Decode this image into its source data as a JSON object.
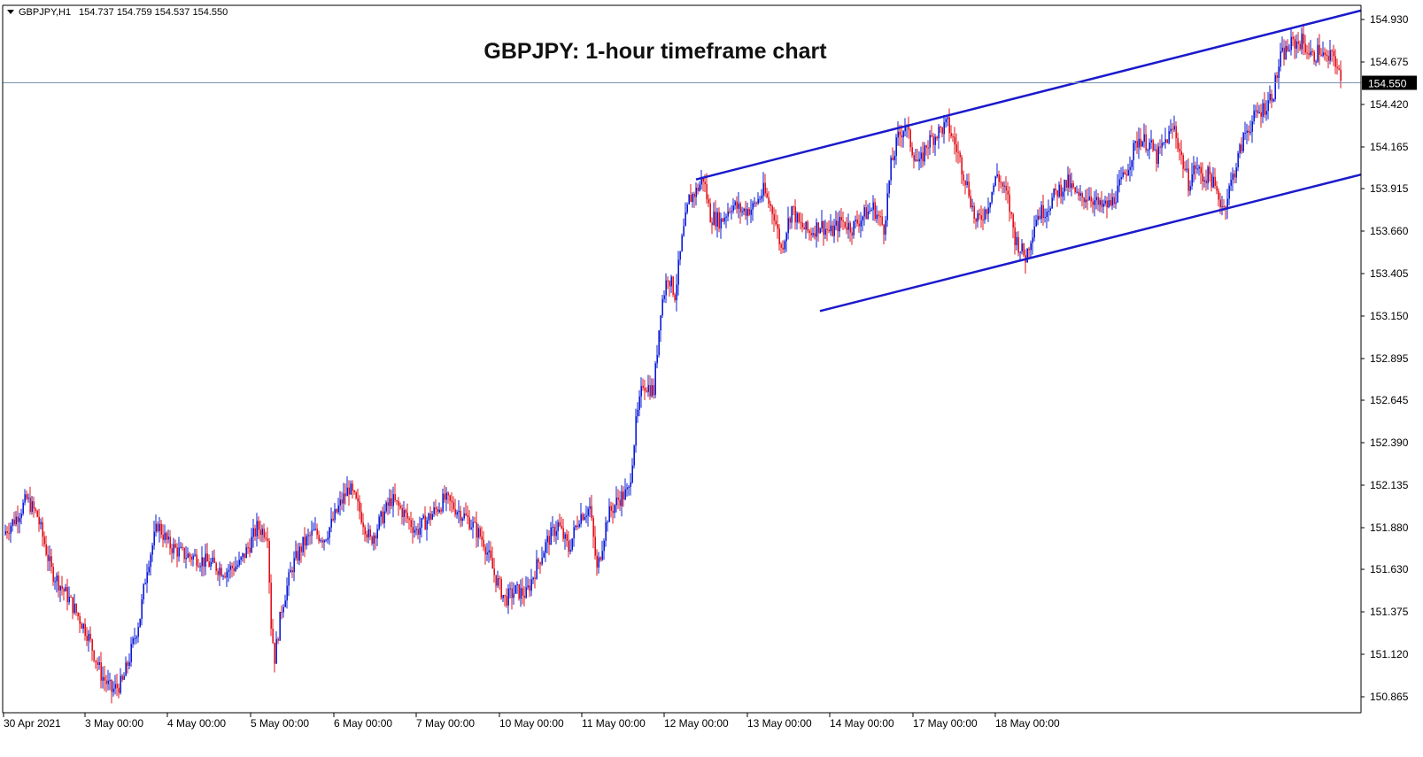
{
  "header": {
    "symbol_label": "GBPJPY,H1",
    "ohlc": "154.737 154.759 154.537 154.550"
  },
  "title": "GBPJPY: 1-hour timeframe chart",
  "colors": {
    "bull": "#0b1bd6",
    "bear": "#e0101a",
    "trendline": "#1a1acc",
    "price_line": "#7a92b0",
    "axis": "#000000"
  },
  "chart_data": {
    "type": "candlestick",
    "symbol": "GBPJPY",
    "timeframe": "H1",
    "current_price": 154.55,
    "y_ticks": [
      154.93,
      154.675,
      154.42,
      154.165,
      153.915,
      153.66,
      153.405,
      153.15,
      152.895,
      152.645,
      152.39,
      152.135,
      151.88,
      151.63,
      151.375,
      151.12,
      150.865
    ],
    "y_tick_labels": [
      "154.930",
      "154.675",
      "154.420",
      "154.165",
      "153.915",
      "153.660",
      "153.405",
      "153.150",
      "152.895",
      "152.645",
      "152.390",
      "152.135",
      "151.880",
      "151.630",
      "151.375",
      "151.120",
      "150.865"
    ],
    "current_price_label": "154.550",
    "x_labels": [
      "30 Apr 2021",
      "3 May 00:00",
      "4 May 00:00",
      "5 May 00:00",
      "6 May 00:00",
      "7 May 00:00",
      "10 May 00:00",
      "11 May 00:00",
      "12 May 00:00",
      "13 May 00:00",
      "14 May 00:00",
      "17 May 00:00",
      "18 May 00:00"
    ],
    "ylim": [
      150.8,
      155.05
    ],
    "price_path": [
      [
        0,
        151.86
      ],
      [
        6,
        151.94
      ],
      [
        12,
        152.05
      ],
      [
        18,
        151.95
      ],
      [
        26,
        151.62
      ],
      [
        36,
        151.45
      ],
      [
        46,
        151.25
      ],
      [
        54,
        151.0
      ],
      [
        60,
        150.9
      ],
      [
        66,
        150.95
      ],
      [
        70,
        151.1
      ],
      [
        76,
        151.35
      ],
      [
        80,
        151.65
      ],
      [
        86,
        151.9
      ],
      [
        92,
        151.78
      ],
      [
        100,
        151.72
      ],
      [
        108,
        151.7
      ],
      [
        116,
        151.66
      ],
      [
        124,
        151.62
      ],
      [
        132,
        151.66
      ],
      [
        138,
        151.78
      ],
      [
        142,
        151.88
      ],
      [
        148,
        151.85
      ],
      [
        150,
        151.3
      ],
      [
        152,
        151.1
      ],
      [
        156,
        151.4
      ],
      [
        162,
        151.65
      ],
      [
        168,
        151.78
      ],
      [
        174,
        151.85
      ],
      [
        180,
        151.82
      ],
      [
        184,
        151.9
      ],
      [
        188,
        152.0
      ],
      [
        194,
        152.12
      ],
      [
        200,
        151.98
      ],
      [
        206,
        151.8
      ],
      [
        212,
        151.93
      ],
      [
        218,
        152.05
      ],
      [
        224,
        151.98
      ],
      [
        232,
        151.86
      ],
      [
        240,
        151.95
      ],
      [
        248,
        152.05
      ],
      [
        256,
        151.98
      ],
      [
        262,
        151.92
      ],
      [
        270,
        151.8
      ],
      [
        276,
        151.6
      ],
      [
        282,
        151.45
      ],
      [
        288,
        151.5
      ],
      [
        294,
        151.48
      ],
      [
        300,
        151.65
      ],
      [
        306,
        151.8
      ],
      [
        312,
        151.9
      ],
      [
        318,
        151.75
      ],
      [
        324,
        151.95
      ],
      [
        330,
        152.0
      ],
      [
        334,
        151.62
      ],
      [
        340,
        151.95
      ],
      [
        346,
        152.05
      ],
      [
        352,
        152.1
      ],
      [
        356,
        152.5
      ],
      [
        360,
        152.75
      ],
      [
        366,
        152.7
      ],
      [
        370,
        153.2
      ],
      [
        374,
        153.4
      ],
      [
        378,
        153.28
      ],
      [
        382,
        153.6
      ],
      [
        386,
        153.85
      ],
      [
        390,
        153.9
      ],
      [
        394,
        153.98
      ],
      [
        398,
        153.75
      ],
      [
        404,
        153.72
      ],
      [
        410,
        153.82
      ],
      [
        416,
        153.78
      ],
      [
        422,
        153.8
      ],
      [
        428,
        153.9
      ],
      [
        434,
        153.76
      ],
      [
        438,
        153.55
      ],
      [
        444,
        153.8
      ],
      [
        448,
        153.7
      ],
      [
        454,
        153.65
      ],
      [
        460,
        153.7
      ],
      [
        466,
        153.65
      ],
      [
        472,
        153.72
      ],
      [
        478,
        153.68
      ],
      [
        484,
        153.75
      ],
      [
        490,
        153.8
      ],
      [
        496,
        153.68
      ],
      [
        500,
        154.05
      ],
      [
        504,
        154.22
      ],
      [
        508,
        154.3
      ],
      [
        512,
        154.15
      ],
      [
        516,
        154.05
      ],
      [
        520,
        154.18
      ],
      [
        526,
        154.25
      ],
      [
        532,
        154.3
      ],
      [
        538,
        154.12
      ],
      [
        544,
        153.9
      ],
      [
        548,
        153.7
      ],
      [
        554,
        153.8
      ],
      [
        560,
        154.0
      ],
      [
        566,
        153.85
      ],
      [
        570,
        153.62
      ],
      [
        576,
        153.5
      ],
      [
        582,
        153.75
      ],
      [
        588,
        153.8
      ],
      [
        594,
        153.9
      ],
      [
        600,
        153.95
      ],
      [
        606,
        153.85
      ],
      [
        612,
        153.88
      ],
      [
        618,
        153.8
      ],
      [
        624,
        153.82
      ],
      [
        628,
        153.9
      ],
      [
        632,
        154.0
      ],
      [
        636,
        154.12
      ],
      [
        640,
        154.22
      ],
      [
        646,
        154.18
      ],
      [
        650,
        154.1
      ],
      [
        656,
        154.22
      ],
      [
        660,
        154.28
      ],
      [
        664,
        154.1
      ],
      [
        668,
        153.95
      ],
      [
        672,
        154.05
      ],
      [
        676,
        153.98
      ],
      [
        680,
        154.0
      ],
      [
        684,
        153.88
      ],
      [
        688,
        153.8
      ],
      [
        692,
        153.95
      ],
      [
        696,
        154.1
      ],
      [
        700,
        154.25
      ],
      [
        706,
        154.35
      ],
      [
        712,
        154.42
      ],
      [
        716,
        154.5
      ],
      [
        720,
        154.7
      ],
      [
        726,
        154.78
      ],
      [
        732,
        154.8
      ],
      [
        738,
        154.7
      ],
      [
        742,
        154.75
      ],
      [
        746,
        154.68
      ],
      [
        750,
        154.72
      ],
      [
        754,
        154.55
      ]
    ],
    "trendlines": [
      {
        "start": [
          390,
          153.97
        ],
        "end": [
          790,
          155.05
        ]
      },
      {
        "start": [
          460,
          153.18
        ],
        "end": [
          915,
          154.4
        ]
      }
    ],
    "grid": false,
    "legend": "none"
  }
}
